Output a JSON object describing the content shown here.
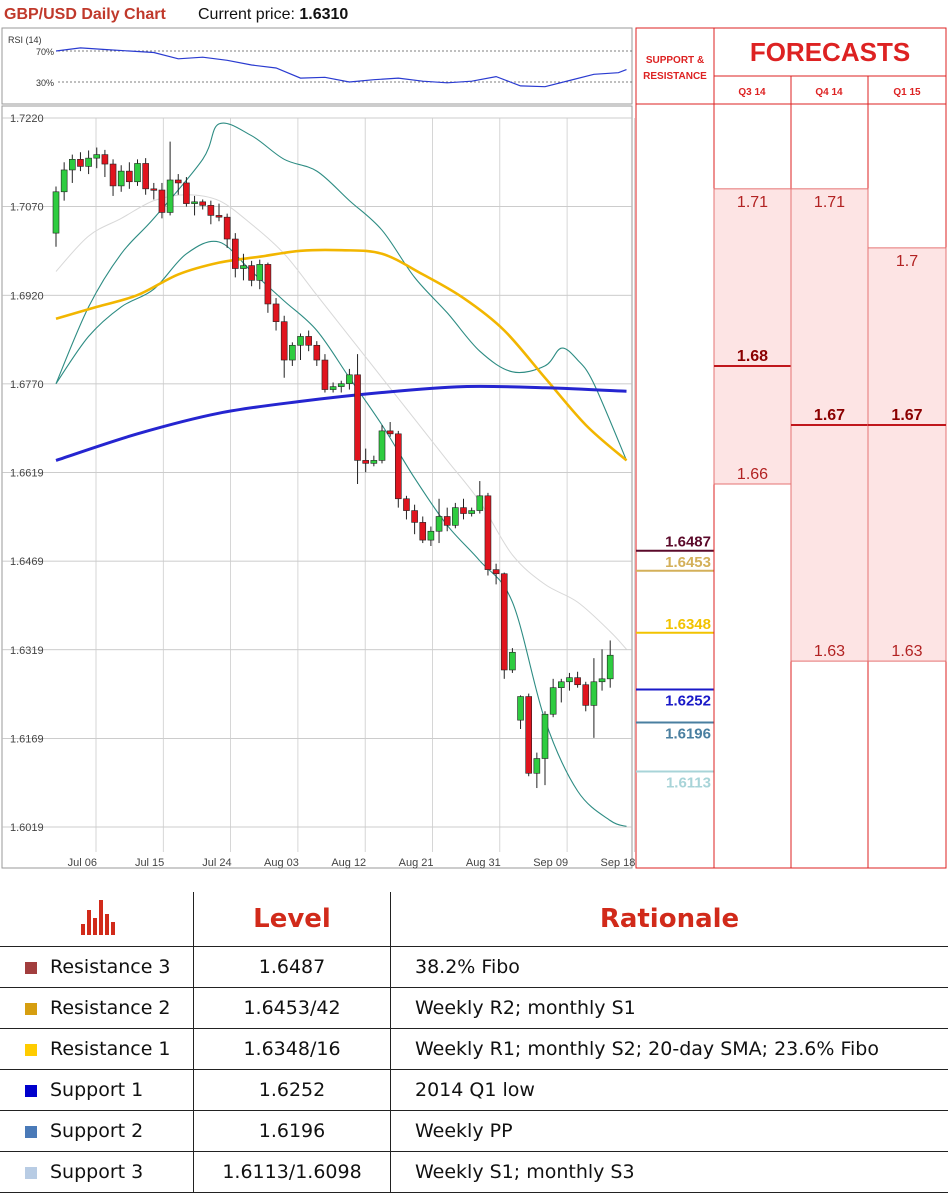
{
  "header": {
    "title": "GBP/USD Daily Chart",
    "price_label": "Current price: ",
    "price_value": "1.6310"
  },
  "rsi": {
    "label": "RSI (14)",
    "levels": [
      "70%",
      "30%"
    ]
  },
  "support_resistance_header": [
    "SUPPORT &",
    "RESISTANCE"
  ],
  "forecasts": {
    "title": "FORECASTS",
    "columns": [
      "Q3 14",
      "Q4 14",
      "Q1 15"
    ],
    "ranges": [
      {
        "high": "1.71",
        "mid": "1.68",
        "low": "1.66"
      },
      {
        "high": "1.71",
        "mid": "1.67",
        "low": "1.63"
      },
      {
        "high": "1.7",
        "mid": "1.67",
        "low": "1.63"
      }
    ]
  },
  "chart_data": {
    "type": "candlestick",
    "title": "GBP/USD Daily Chart",
    "y_ticks": [
      "1.7220",
      "1.7070",
      "1.6920",
      "1.6770",
      "1.6619",
      "1.6469",
      "1.6319",
      "1.6169",
      "1.6019"
    ],
    "x_ticks": [
      "Jul 06",
      "Jul 15",
      "Jul 24",
      "Aug 03",
      "Aug 12",
      "Aug 21",
      "Aug 31",
      "Sep 09",
      "Sep 18"
    ],
    "ylim": [
      1.6019,
      1.722
    ],
    "candles": [
      [
        1.7025,
        1.7104,
        1.7002,
        1.7095
      ],
      [
        1.7095,
        1.7145,
        1.708,
        1.7132
      ],
      [
        1.7132,
        1.7158,
        1.711,
        1.715
      ],
      [
        1.715,
        1.7162,
        1.713,
        1.7138
      ],
      [
        1.7138,
        1.7165,
        1.7125,
        1.7152
      ],
      [
        1.7152,
        1.717,
        1.7135,
        1.7158
      ],
      [
        1.7158,
        1.7166,
        1.712,
        1.7142
      ],
      [
        1.7142,
        1.715,
        1.7088,
        1.7105
      ],
      [
        1.7105,
        1.714,
        1.7095,
        1.713
      ],
      [
        1.713,
        1.7145,
        1.71,
        1.7112
      ],
      [
        1.7112,
        1.715,
        1.7105,
        1.7143
      ],
      [
        1.7143,
        1.7152,
        1.709,
        1.71
      ],
      [
        1.71,
        1.711,
        1.7082,
        1.7098
      ],
      [
        1.7098,
        1.711,
        1.705,
        1.706
      ],
      [
        1.706,
        1.718,
        1.7055,
        1.7115
      ],
      [
        1.7115,
        1.7125,
        1.709,
        1.711
      ],
      [
        1.711,
        1.712,
        1.707,
        1.7075
      ],
      [
        1.7075,
        1.7088,
        1.7055,
        1.7078
      ],
      [
        1.7078,
        1.7082,
        1.7065,
        1.7072
      ],
      [
        1.7072,
        1.708,
        1.704,
        1.7055
      ],
      [
        1.7055,
        1.7075,
        1.7045,
        1.7052
      ],
      [
        1.7052,
        1.7058,
        1.7,
        1.7015
      ],
      [
        1.7015,
        1.7025,
        1.695,
        1.6965
      ],
      [
        1.6965,
        1.699,
        1.6945,
        1.697
      ],
      [
        1.697,
        1.6978,
        1.6935,
        1.6945
      ],
      [
        1.6945,
        1.698,
        1.693,
        1.6972
      ],
      [
        1.6972,
        1.6975,
        1.689,
        1.6905
      ],
      [
        1.6905,
        1.6915,
        1.686,
        1.6875
      ],
      [
        1.6875,
        1.6885,
        1.678,
        1.681
      ],
      [
        1.681,
        1.684,
        1.68,
        1.6835
      ],
      [
        1.6835,
        1.6855,
        1.681,
        1.685
      ],
      [
        1.685,
        1.686,
        1.6825,
        1.6835
      ],
      [
        1.6835,
        1.6842,
        1.68,
        1.681
      ],
      [
        1.681,
        1.682,
        1.6755,
        1.676
      ],
      [
        1.676,
        1.6772,
        1.6755,
        1.6765
      ],
      [
        1.6765,
        1.6775,
        1.6755,
        1.677
      ],
      [
        1.677,
        1.6795,
        1.676,
        1.6785
      ],
      [
        1.6785,
        1.682,
        1.66,
        1.664
      ],
      [
        1.664,
        1.666,
        1.662,
        1.6635
      ],
      [
        1.6635,
        1.6648,
        1.663,
        1.664
      ],
      [
        1.664,
        1.67,
        1.6635,
        1.669
      ],
      [
        1.669,
        1.6705,
        1.668,
        1.6685
      ],
      [
        1.6685,
        1.669,
        1.656,
        1.6575
      ],
      [
        1.6575,
        1.658,
        1.654,
        1.6555
      ],
      [
        1.6555,
        1.6565,
        1.6515,
        1.6535
      ],
      [
        1.6535,
        1.6545,
        1.65,
        1.6505
      ],
      [
        1.6505,
        1.6528,
        1.6495,
        1.652
      ],
      [
        1.652,
        1.6575,
        1.65,
        1.6545
      ],
      [
        1.6545,
        1.656,
        1.652,
        1.653
      ],
      [
        1.653,
        1.6568,
        1.6525,
        1.656
      ],
      [
        1.656,
        1.6575,
        1.654,
        1.655
      ],
      [
        1.655,
        1.656,
        1.6545,
        1.6555
      ],
      [
        1.6555,
        1.6605,
        1.655,
        1.658
      ],
      [
        1.658,
        1.6585,
        1.6445,
        1.6455
      ],
      [
        1.6455,
        1.6465,
        1.643,
        1.6448
      ],
      [
        1.6448,
        1.645,
        1.627,
        1.6285
      ],
      [
        1.6285,
        1.6322,
        1.628,
        1.6315
      ],
      [
        1.62,
        1.6242,
        1.6185,
        1.624
      ],
      [
        1.624,
        1.6245,
        1.6105,
        1.611
      ],
      [
        1.611,
        1.6145,
        1.6085,
        1.6135
      ],
      [
        1.6135,
        1.6215,
        1.609,
        1.621
      ],
      [
        1.621,
        1.627,
        1.6205,
        1.6255
      ],
      [
        1.6255,
        1.627,
        1.623,
        1.6265
      ],
      [
        1.6265,
        1.628,
        1.625,
        1.6272
      ],
      [
        1.6272,
        1.6282,
        1.6255,
        1.626
      ],
      [
        1.626,
        1.6265,
        1.6215,
        1.6225
      ],
      [
        1.6225,
        1.6305,
        1.617,
        1.6265
      ],
      [
        1.6265,
        1.632,
        1.625,
        1.627
      ],
      [
        1.627,
        1.6335,
        1.6255,
        1.631
      ]
    ],
    "ma_yellow": [
      [
        0,
        1.688
      ],
      [
        5,
        1.69
      ],
      [
        10,
        1.692
      ],
      [
        15,
        1.6955
      ],
      [
        20,
        1.6975
      ],
      [
        25,
        1.6985
      ],
      [
        30,
        1.6995
      ],
      [
        35,
        1.6996
      ],
      [
        40,
        1.699
      ],
      [
        45,
        1.6955
      ],
      [
        50,
        1.6915
      ],
      [
        55,
        1.686
      ],
      [
        60,
        1.678
      ],
      [
        65,
        1.67
      ],
      [
        70,
        1.664
      ]
    ],
    "ma_blue": [
      [
        0,
        1.664
      ],
      [
        10,
        1.6685
      ],
      [
        20,
        1.672
      ],
      [
        30,
        1.674
      ],
      [
        40,
        1.6755
      ],
      [
        50,
        1.6765
      ],
      [
        60,
        1.6763
      ],
      [
        70,
        1.6757
      ]
    ],
    "bb_upper": [
      [
        0,
        1.677
      ],
      [
        4,
        1.69
      ],
      [
        8,
        1.699
      ],
      [
        12,
        1.705
      ],
      [
        18,
        1.715
      ],
      [
        20,
        1.721
      ],
      [
        24,
        1.719
      ],
      [
        28,
        1.715
      ],
      [
        32,
        1.713
      ],
      [
        36,
        1.708
      ],
      [
        40,
        1.703
      ],
      [
        44,
        1.695
      ],
      [
        48,
        1.689
      ],
      [
        52,
        1.6825
      ],
      [
        56,
        1.679
      ],
      [
        60,
        1.68
      ],
      [
        62,
        1.683
      ],
      [
        64,
        1.681
      ],
      [
        66,
        1.677
      ],
      [
        70,
        1.664
      ]
    ],
    "bb_lower": [
      [
        0,
        1.677
      ],
      [
        4,
        1.685
      ],
      [
        8,
        1.69
      ],
      [
        12,
        1.693
      ],
      [
        16,
        1.699
      ],
      [
        20,
        1.701
      ],
      [
        24,
        1.696
      ],
      [
        28,
        1.691
      ],
      [
        32,
        1.686
      ],
      [
        36,
        1.678
      ],
      [
        40,
        1.67
      ],
      [
        44,
        1.661
      ],
      [
        48,
        1.653
      ],
      [
        52,
        1.647
      ],
      [
        56,
        1.64
      ],
      [
        60,
        1.62
      ],
      [
        64,
        1.608
      ],
      [
        68,
        1.603
      ],
      [
        70,
        1.602
      ]
    ],
    "bb_mid": [
      [
        0,
        1.696
      ],
      [
        4,
        1.702
      ],
      [
        8,
        1.705
      ],
      [
        12,
        1.708
      ],
      [
        16,
        1.709
      ],
      [
        20,
        1.708
      ],
      [
        24,
        1.704
      ],
      [
        28,
        1.699
      ],
      [
        32,
        1.692
      ],
      [
        36,
        1.685
      ],
      [
        40,
        1.678
      ],
      [
        44,
        1.671
      ],
      [
        48,
        1.664
      ],
      [
        52,
        1.657
      ],
      [
        56,
        1.648
      ],
      [
        60,
        1.643
      ],
      [
        64,
        1.64
      ],
      [
        68,
        1.635
      ],
      [
        70,
        1.632
      ]
    ],
    "rsi": [
      [
        0,
        70
      ],
      [
        3,
        74
      ],
      [
        6,
        72
      ],
      [
        9,
        70
      ],
      [
        12,
        68
      ],
      [
        15,
        60
      ],
      [
        18,
        62
      ],
      [
        21,
        58
      ],
      [
        24,
        52
      ],
      [
        27,
        48
      ],
      [
        30,
        35
      ],
      [
        33,
        36
      ],
      [
        36,
        30
      ],
      [
        39,
        33
      ],
      [
        42,
        35
      ],
      [
        45,
        31
      ],
      [
        48,
        29
      ],
      [
        51,
        31
      ],
      [
        54,
        37
      ],
      [
        57,
        25
      ],
      [
        60,
        24
      ],
      [
        63,
        32
      ],
      [
        66,
        40
      ],
      [
        69,
        42
      ],
      [
        70,
        46
      ]
    ]
  },
  "levels": [
    {
      "name": "Resistance 3",
      "value": "1.6487",
      "level": "1.6487",
      "rationale": "38.2% Fibo",
      "color": "#5b0a2a",
      "swatch": "#a23e3e"
    },
    {
      "name": "Resistance 2",
      "value": "1.6453",
      "level": "1.6453/42",
      "rationale": "Weekly R2; monthly S1",
      "color": "#d4b05a",
      "swatch": "#d69e10"
    },
    {
      "name": "Resistance 1",
      "value": "1.6348",
      "level": "1.6348/16",
      "rationale": "Weekly R1; monthly S2; 20-day SMA; 23.6% Fibo",
      "color": "#f2c300",
      "swatch": "#ffcc00"
    },
    {
      "name": "Support 1",
      "value": "1.6252",
      "level": "1.6252",
      "rationale": "2014 Q1 low",
      "color": "#1a1ac8",
      "swatch": "#0000cc"
    },
    {
      "name": "Support 2",
      "value": "1.6196",
      "level": "1.6196",
      "rationale": "Weekly PP",
      "color": "#4a7fa0",
      "swatch": "#4a7ab8"
    },
    {
      "name": "Support 3",
      "value": "1.6113",
      "level": "1.6113/1.6098",
      "rationale": "Weekly S1; monthly S3",
      "color": "#a8d4d8",
      "swatch": "#b8cce4"
    }
  ],
  "table": {
    "header_level": "Level",
    "header_rationale": "Rationale"
  }
}
